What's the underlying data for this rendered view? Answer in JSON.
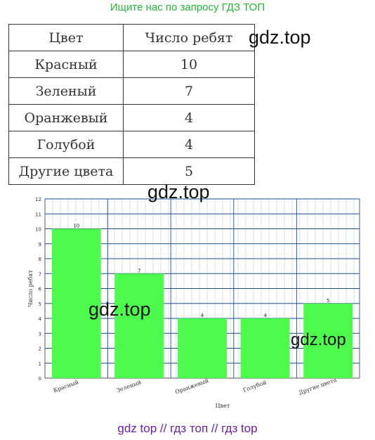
{
  "banner": "Ищите нас по запросу ГДЗ ТОП",
  "table": {
    "headers": [
      "Цвет",
      "Число ребят"
    ],
    "rows": [
      [
        "Красный",
        "10"
      ],
      [
        "Зеленый",
        "7"
      ],
      [
        "Оранжевый",
        "4"
      ],
      [
        "Голубой",
        "4"
      ],
      [
        "Другие цвета",
        "5"
      ]
    ]
  },
  "watermarks": [
    "gdz.top",
    "gdz.top",
    "gdz.top",
    "gdz.top"
  ],
  "footer": "gdz top  //  гдз топ  //  гдз top",
  "chart_data": {
    "type": "bar",
    "categories": [
      "Красный",
      "Зеленый",
      "Оранжевый",
      "Голубой",
      "Другие цвета"
    ],
    "values": [
      10,
      7,
      4,
      4,
      5
    ],
    "data_labels": [
      "10",
      "7",
      "4",
      "4",
      "5"
    ],
    "xlabel": "Цвет",
    "ylabel": "Число ребят",
    "ylim": [
      0,
      12
    ],
    "yticks": [
      0,
      1,
      2,
      3,
      4,
      5,
      6,
      7,
      8,
      9,
      10,
      11,
      12
    ],
    "bar_color": "#4dfb4d",
    "grid": true,
    "grid_color": "#b9cfe0",
    "major_grid_color": "#1f4e8c"
  }
}
